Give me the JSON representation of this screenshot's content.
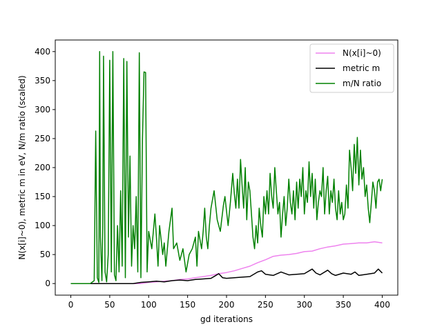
{
  "chart_data": {
    "type": "line",
    "title": "",
    "xlabel": "gd iterations",
    "ylabel": "N(x[i]~0), metric m in eV, N/m ratio (scaled)",
    "xlim": [
      -20,
      420
    ],
    "ylim": [
      -20,
      420
    ],
    "xticks": [
      0,
      50,
      100,
      150,
      200,
      250,
      300,
      350,
      400
    ],
    "yticks": [
      0,
      50,
      100,
      150,
      200,
      250,
      300,
      350,
      400
    ],
    "legend_position": "top-right",
    "grid": false,
    "series": [
      {
        "name": "N(x[i]~0)",
        "color": "#ee82ee",
        "points": [
          [
            0,
            0
          ],
          [
            90,
            0
          ],
          [
            100,
            2
          ],
          [
            110,
            3
          ],
          [
            120,
            4
          ],
          [
            130,
            5
          ],
          [
            140,
            7
          ],
          [
            150,
            8
          ],
          [
            160,
            10
          ],
          [
            170,
            12
          ],
          [
            180,
            14
          ],
          [
            190,
            17
          ],
          [
            200,
            19
          ],
          [
            210,
            22
          ],
          [
            220,
            26
          ],
          [
            230,
            30
          ],
          [
            240,
            36
          ],
          [
            250,
            41
          ],
          [
            260,
            47
          ],
          [
            270,
            49
          ],
          [
            280,
            50
          ],
          [
            290,
            52
          ],
          [
            300,
            55
          ],
          [
            310,
            56
          ],
          [
            320,
            60
          ],
          [
            330,
            63
          ],
          [
            340,
            65
          ],
          [
            350,
            68
          ],
          [
            360,
            69
          ],
          [
            370,
            70
          ],
          [
            380,
            70
          ],
          [
            390,
            72
          ],
          [
            400,
            70
          ]
        ]
      },
      {
        "name": "metric m",
        "color": "#000000",
        "points": [
          [
            0,
            0
          ],
          [
            80,
            0
          ],
          [
            90,
            2
          ],
          [
            100,
            3
          ],
          [
            110,
            4
          ],
          [
            120,
            3
          ],
          [
            130,
            5
          ],
          [
            140,
            6
          ],
          [
            150,
            5
          ],
          [
            160,
            7
          ],
          [
            170,
            8
          ],
          [
            180,
            9
          ],
          [
            185,
            13
          ],
          [
            190,
            17
          ],
          [
            195,
            10
          ],
          [
            200,
            9
          ],
          [
            210,
            10
          ],
          [
            220,
            11
          ],
          [
            230,
            12
          ],
          [
            240,
            20
          ],
          [
            245,
            22
          ],
          [
            250,
            16
          ],
          [
            260,
            14
          ],
          [
            270,
            20
          ],
          [
            280,
            15
          ],
          [
            290,
            16
          ],
          [
            300,
            17
          ],
          [
            310,
            25
          ],
          [
            315,
            18
          ],
          [
            320,
            15
          ],
          [
            330,
            23
          ],
          [
            335,
            17
          ],
          [
            340,
            14
          ],
          [
            350,
            18
          ],
          [
            360,
            16
          ],
          [
            365,
            20
          ],
          [
            370,
            14
          ],
          [
            380,
            16
          ],
          [
            390,
            18
          ],
          [
            395,
            25
          ],
          [
            400,
            18
          ]
        ]
      },
      {
        "name": "m/N ratio",
        "color": "#008000",
        "points": [
          [
            0,
            0
          ],
          [
            25,
            0
          ],
          [
            30,
            5
          ],
          [
            32,
            263
          ],
          [
            34,
            10
          ],
          [
            36,
            2
          ],
          [
            37,
            400
          ],
          [
            38,
            80
          ],
          [
            40,
            5
          ],
          [
            41,
            100
          ],
          [
            42,
            392
          ],
          [
            44,
            20
          ],
          [
            46,
            3
          ],
          [
            48,
            50
          ],
          [
            50,
            385
          ],
          [
            52,
            20
          ],
          [
            54,
            400
          ],
          [
            56,
            15
          ],
          [
            58,
            5
          ],
          [
            60,
            100
          ],
          [
            62,
            20
          ],
          [
            64,
            160
          ],
          [
            66,
            30
          ],
          [
            68,
            388
          ],
          [
            70,
            10
          ],
          [
            72,
            383
          ],
          [
            74,
            80
          ],
          [
            76,
            220
          ],
          [
            78,
            30
          ],
          [
            80,
            100
          ],
          [
            82,
            60
          ],
          [
            84,
            150
          ],
          [
            86,
            20
          ],
          [
            88,
            398
          ],
          [
            90,
            10
          ],
          [
            92,
            250
          ],
          [
            94,
            365
          ],
          [
            96,
            364
          ],
          [
            98,
            20
          ],
          [
            100,
            90
          ],
          [
            104,
            60
          ],
          [
            108,
            120
          ],
          [
            110,
            80
          ],
          [
            112,
            30
          ],
          [
            114,
            100
          ],
          [
            118,
            50
          ],
          [
            120,
            70
          ],
          [
            122,
            30
          ],
          [
            126,
            90
          ],
          [
            130,
            130
          ],
          [
            132,
            60
          ],
          [
            136,
            70
          ],
          [
            140,
            40
          ],
          [
            144,
            60
          ],
          [
            148,
            20
          ],
          [
            152,
            50
          ],
          [
            156,
            60
          ],
          [
            160,
            80
          ],
          [
            162,
            30
          ],
          [
            164,
            90
          ],
          [
            168,
            60
          ],
          [
            170,
            90
          ],
          [
            172,
            130
          ],
          [
            174,
            80
          ],
          [
            176,
            60
          ],
          [
            178,
            100
          ],
          [
            180,
            130
          ],
          [
            184,
            160
          ],
          [
            188,
            110
          ],
          [
            192,
            90
          ],
          [
            196,
            135
          ],
          [
            198,
            150
          ],
          [
            202,
            100
          ],
          [
            205,
            140
          ],
          [
            208,
            190
          ],
          [
            210,
            155
          ],
          [
            212,
            130
          ],
          [
            214,
            180
          ],
          [
            216,
            130
          ],
          [
            218,
            214
          ],
          [
            220,
            170
          ],
          [
            222,
            130
          ],
          [
            224,
            200
          ],
          [
            226,
            110
          ],
          [
            228,
            175
          ],
          [
            230,
            160
          ],
          [
            232,
            120
          ],
          [
            234,
            80
          ],
          [
            236,
            60
          ],
          [
            238,
            100
          ],
          [
            240,
            70
          ],
          [
            242,
            130
          ],
          [
            244,
            100
          ],
          [
            246,
            80
          ],
          [
            248,
            150
          ],
          [
            250,
            120
          ],
          [
            252,
            160
          ],
          [
            254,
            120
          ],
          [
            256,
            190
          ],
          [
            258,
            150
          ],
          [
            260,
            130
          ],
          [
            262,
            200
          ],
          [
            264,
            160
          ],
          [
            266,
            120
          ],
          [
            268,
            140
          ],
          [
            270,
            80
          ],
          [
            272,
            120
          ],
          [
            274,
            150
          ],
          [
            276,
            100
          ],
          [
            278,
            130
          ],
          [
            280,
            180
          ],
          [
            282,
            140
          ],
          [
            284,
            120
          ],
          [
            286,
            160
          ],
          [
            288,
            110
          ],
          [
            290,
            175
          ],
          [
            292,
            130
          ],
          [
            294,
            180
          ],
          [
            296,
            150
          ],
          [
            298,
            200
          ],
          [
            300,
            120
          ],
          [
            302,
            160
          ],
          [
            304,
            140
          ],
          [
            306,
            210
          ],
          [
            308,
            150
          ],
          [
            310,
            190
          ],
          [
            312,
            130
          ],
          [
            314,
            180
          ],
          [
            316,
            110
          ],
          [
            318,
            140
          ],
          [
            320,
            160
          ],
          [
            322,
            150
          ],
          [
            324,
            200
          ],
          [
            326,
            120
          ],
          [
            328,
            160
          ],
          [
            330,
            185
          ],
          [
            332,
            120
          ],
          [
            334,
            160
          ],
          [
            336,
            140
          ],
          [
            338,
            180
          ],
          [
            340,
            130
          ],
          [
            342,
            110
          ],
          [
            344,
            160
          ],
          [
            346,
            120
          ],
          [
            348,
            140
          ],
          [
            350,
            110
          ],
          [
            352,
            120
          ],
          [
            354,
            170
          ],
          [
            356,
            130
          ],
          [
            358,
            230
          ],
          [
            360,
            200
          ],
          [
            362,
            160
          ],
          [
            364,
            240
          ],
          [
            366,
            190
          ],
          [
            368,
            252
          ],
          [
            370,
            170
          ],
          [
            372,
            230
          ],
          [
            374,
            180
          ],
          [
            376,
            200
          ],
          [
            378,
            150
          ],
          [
            380,
            170
          ],
          [
            382,
            130
          ],
          [
            384,
            105
          ],
          [
            386,
            140
          ],
          [
            388,
            175
          ],
          [
            390,
            160
          ],
          [
            392,
            130
          ],
          [
            394,
            175
          ],
          [
            396,
            180
          ],
          [
            398,
            160
          ],
          [
            400,
            180
          ]
        ]
      }
    ]
  }
}
